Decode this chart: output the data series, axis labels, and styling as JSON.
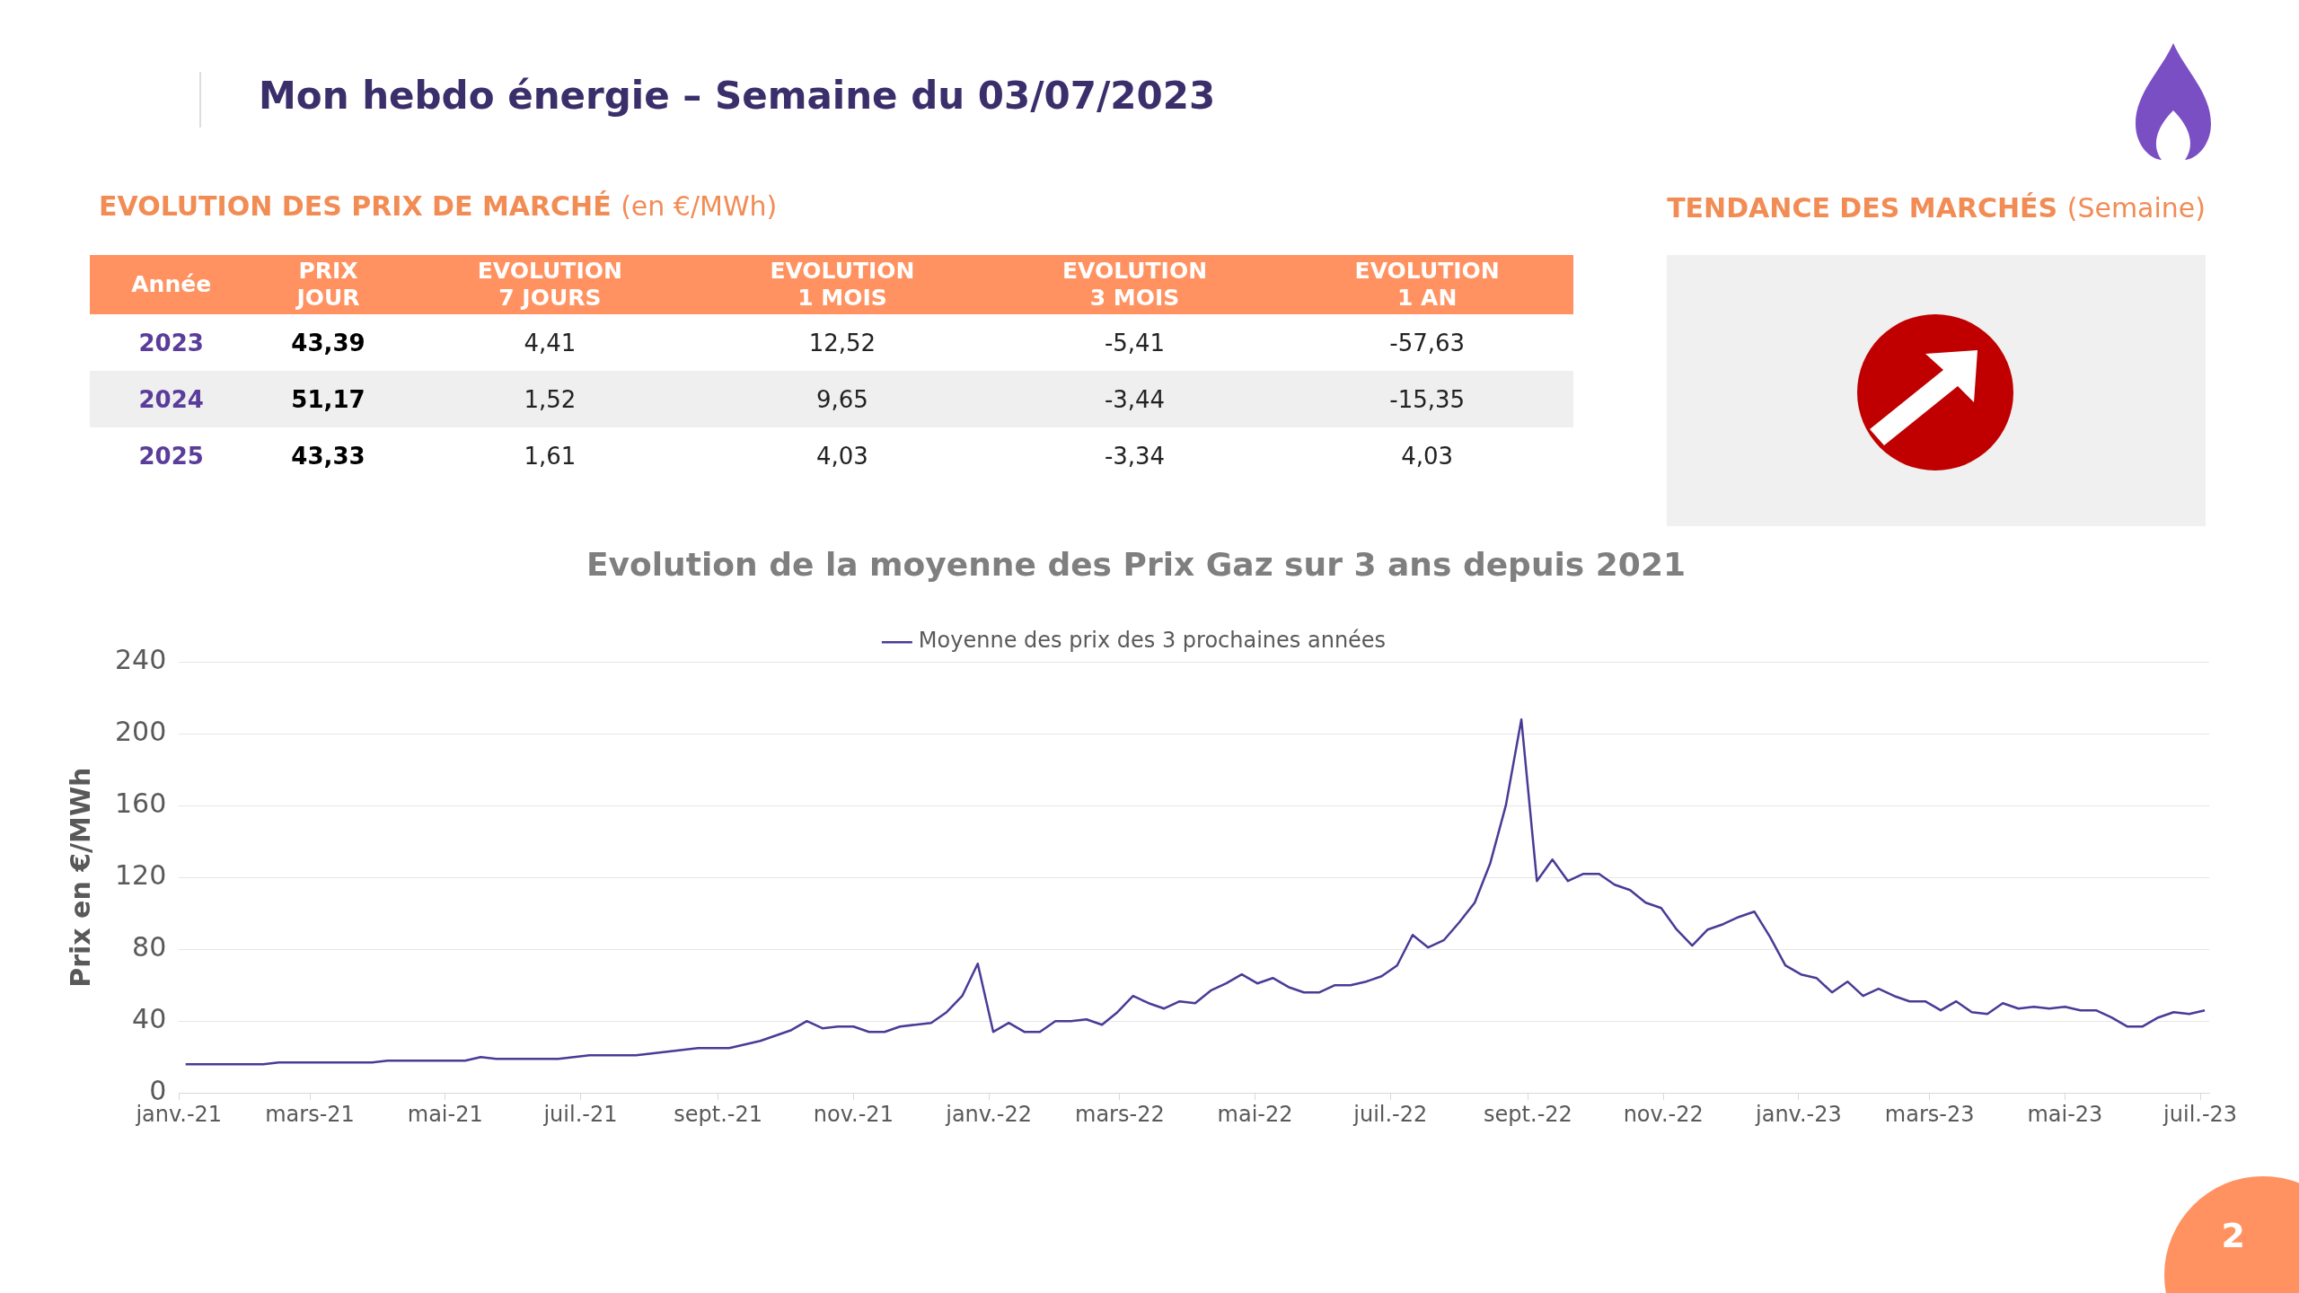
{
  "chart_data": [
    {
      "type": "other",
      "title": "Mon hebdo énergie – Semaine du 03/07/2023",
      "subtitle": "EVOLUTION DES PRIX DE MARCHÉ",
      "annotations": [
        "(en €/MWh)",
        "2"
      ],
      "categories": [
        "Année",
        "PRIX\nJOUR",
        "EVOLUTION\n7 JOURS",
        "EVOLUTION\n1 MOIS",
        "EVOLUTION\n3 MOIS",
        "EVOLUTION\n1 AN"
      ],
      "y_categories": [
        "2023",
        "2024",
        "2025"
      ],
      "cell_labels": [
        [
          "43,39",
          "4,41",
          "12,52",
          "-5,41",
          "-57,63"
        ],
        [
          "51,17",
          "1,52",
          "9,65",
          "-3,44",
          "-15,35"
        ],
        [
          "43,33",
          "1,61",
          "4,03",
          "-3,34",
          "4,03"
        ]
      ]
    },
    {
      "type": "other",
      "title": "TENDANCE DES MARCHÉS",
      "subtitle": "(Semaine)"
    },
    {
      "type": "line",
      "title": "Evolution de la moyenne des Prix Gaz sur 3 ans depuis 2021",
      "ylabel": "Prix en €/MWh",
      "x": [
        "2021-01-04",
        "2021-01-11",
        "2021-01-18",
        "2021-01-25",
        "2021-02-01",
        "2021-02-08",
        "2021-02-15",
        "2021-02-22",
        "2021-03-01",
        "2021-03-08",
        "2021-03-15",
        "2021-03-22",
        "2021-03-29",
        "2021-04-05",
        "2021-04-12",
        "2021-04-19",
        "2021-04-26",
        "2021-05-03",
        "2021-05-10",
        "2021-05-17",
        "2021-05-24",
        "2021-05-31",
        "2021-06-07",
        "2021-06-14",
        "2021-06-21",
        "2021-06-28",
        "2021-07-05",
        "2021-07-12",
        "2021-07-19",
        "2021-07-26",
        "2021-08-02",
        "2021-08-09",
        "2021-08-16",
        "2021-08-23",
        "2021-08-30",
        "2021-09-06",
        "2021-09-13",
        "2021-09-20",
        "2021-09-27",
        "2021-10-04",
        "2021-10-11",
        "2021-10-18",
        "2021-10-25",
        "2021-11-01",
        "2021-11-08",
        "2021-11-15",
        "2021-11-22",
        "2021-11-29",
        "2021-12-06",
        "2021-12-13",
        "2021-12-20",
        "2021-12-27",
        "2022-01-03",
        "2022-01-10",
        "2022-01-17",
        "2022-01-24",
        "2022-01-31",
        "2022-02-07",
        "2022-02-14",
        "2022-02-21",
        "2022-02-28",
        "2022-03-07",
        "2022-03-14",
        "2022-03-21",
        "2022-03-28",
        "2022-04-04",
        "2022-04-11",
        "2022-04-18",
        "2022-04-25",
        "2022-05-02",
        "2022-05-09",
        "2022-05-16",
        "2022-05-23",
        "2022-05-30",
        "2022-06-06",
        "2022-06-13",
        "2022-06-20",
        "2022-06-27",
        "2022-07-04",
        "2022-07-11",
        "2022-07-18",
        "2022-07-25",
        "2022-08-01",
        "2022-08-08",
        "2022-08-15",
        "2022-08-22",
        "2022-08-29",
        "2022-09-05",
        "2022-09-12",
        "2022-09-19",
        "2022-09-26",
        "2022-10-03",
        "2022-10-10",
        "2022-10-17",
        "2022-10-24",
        "2022-10-31",
        "2022-11-07",
        "2022-11-14",
        "2022-11-21",
        "2022-11-28",
        "2022-12-05",
        "2022-12-12",
        "2022-12-19",
        "2022-12-26",
        "2023-01-02",
        "2023-01-09",
        "2023-01-16",
        "2023-01-23",
        "2023-01-30",
        "2023-02-06",
        "2023-02-13",
        "2023-02-20",
        "2023-02-27",
        "2023-03-06",
        "2023-03-13",
        "2023-03-20",
        "2023-03-27",
        "2023-04-03",
        "2023-04-10",
        "2023-04-17",
        "2023-04-24",
        "2023-05-01",
        "2023-05-08",
        "2023-05-15",
        "2023-05-22",
        "2023-05-29",
        "2023-06-05",
        "2023-06-12",
        "2023-06-19",
        "2023-06-26",
        "2023-07-03"
      ],
      "series": [
        {
          "name": "Moyenne des prix des 3 prochaines années",
          "color": "#4b3a96",
          "values": [
            16,
            16,
            16,
            16,
            16,
            16,
            17,
            17,
            17,
            17,
            17,
            17,
            17,
            18,
            18,
            18,
            18,
            18,
            18,
            20,
            19,
            19,
            19,
            19,
            19,
            20,
            21,
            21,
            21,
            21,
            22,
            23,
            24,
            25,
            25,
            25,
            27,
            29,
            32,
            35,
            40,
            36,
            37,
            37,
            34,
            34,
            37,
            38,
            39,
            45,
            54,
            72,
            34,
            39,
            34,
            34,
            40,
            40,
            41,
            38,
            45,
            54,
            50,
            47,
            51,
            50,
            57,
            61,
            66,
            61,
            64,
            59,
            56,
            56,
            60,
            60,
            62,
            65,
            71,
            88,
            81,
            85,
            95,
            106,
            128,
            160,
            208,
            118,
            130,
            118,
            122,
            122,
            116,
            113,
            106,
            103,
            91,
            82,
            91,
            94,
            98,
            101,
            87,
            71,
            66,
            64,
            56,
            62,
            54,
            58,
            54,
            51,
            51,
            46,
            51,
            45,
            44,
            50,
            47,
            48,
            47,
            48,
            46,
            46,
            42,
            37,
            37,
            42,
            45,
            44,
            46
          ]
        }
      ],
      "xlim": [
        "2021-01-01",
        "2023-07-05"
      ],
      "xticks": [
        {
          "value": "2021-01-01",
          "label": "janv.-21"
        },
        {
          "value": "2021-03-01",
          "label": "mars-21"
        },
        {
          "value": "2021-05-01",
          "label": "mai-21"
        },
        {
          "value": "2021-07-01",
          "label": "juil.-21"
        },
        {
          "value": "2021-09-01",
          "label": "sept.-21"
        },
        {
          "value": "2021-11-01",
          "label": "nov.-21"
        },
        {
          "value": "2022-01-01",
          "label": "janv.-22"
        },
        {
          "value": "2022-03-01",
          "label": "mars-22"
        },
        {
          "value": "2022-05-01",
          "label": "mai-22"
        },
        {
          "value": "2022-07-01",
          "label": "juil.-22"
        },
        {
          "value": "2022-09-01",
          "label": "sept.-22"
        },
        {
          "value": "2022-11-01",
          "label": "nov.-22"
        },
        {
          "value": "2023-01-01",
          "label": "janv.-23"
        },
        {
          "value": "2023-03-01",
          "label": "mars-23"
        },
        {
          "value": "2023-05-01",
          "label": "mai-23"
        },
        {
          "value": "2023-07-01",
          "label": "juil.-23"
        }
      ],
      "ylim": [
        0,
        240
      ],
      "yticks": [
        0,
        40,
        80,
        120,
        160,
        200,
        240
      ],
      "grid": "y",
      "legend": "top",
      "marker": "none",
      "line_style": "solid"
    }
  ]
}
